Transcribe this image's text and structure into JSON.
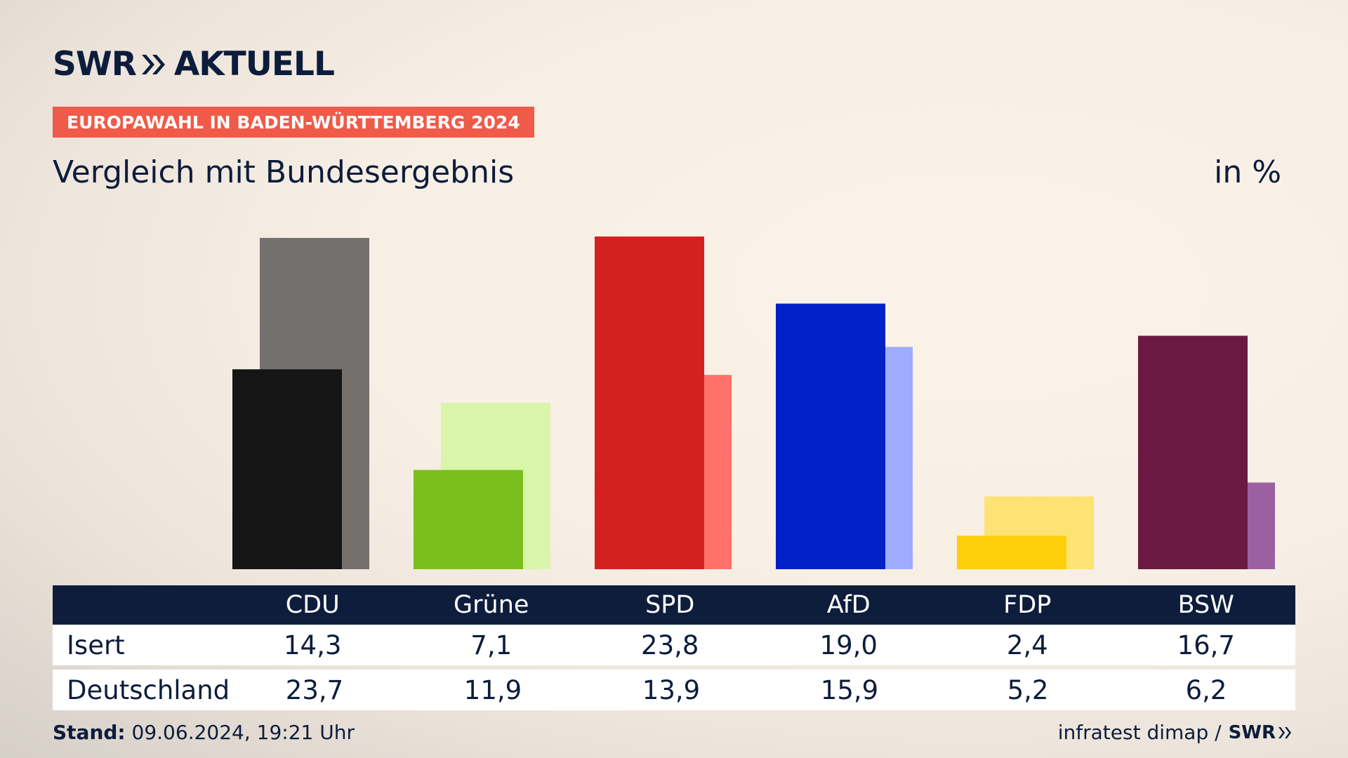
{
  "brand": {
    "name": "SWR",
    "suffix": "AKTUELL"
  },
  "header": {
    "badge": "EUROPAWAHL IN BADEN-WÜRTTEMBERG 2024",
    "subtitle": "Vergleich mit Bundesergebnis",
    "unit": "in %"
  },
  "colors": {
    "badge": "#f05a48",
    "table_header": "#0e1d3c",
    "text": "#0c1c3c"
  },
  "chart_data": {
    "type": "bar",
    "categories": [
      "CDU",
      "Grüne",
      "SPD",
      "AfD",
      "FDP",
      "BSW"
    ],
    "series": [
      {
        "name": "Isert",
        "values": [
          14.3,
          7.1,
          23.8,
          19.0,
          2.4,
          16.7
        ]
      },
      {
        "name": "Deutschland",
        "values": [
          23.7,
          11.9,
          13.9,
          15.9,
          5.2,
          6.2
        ]
      }
    ],
    "colors": {
      "Isert": [
        "#151515",
        "#7abf1c",
        "#d52020",
        "#0021c8",
        "#fdcf0b",
        "#6b1842"
      ],
      "Deutschland": [
        "#73706d",
        "#d8f5aa",
        "#ff716b",
        "#9eabff",
        "#fde274",
        "#9b609f"
      ]
    },
    "ylim": [
      0,
      24
    ]
  },
  "table": {
    "columns": [
      "CDU",
      "Grüne",
      "SPD",
      "AfD",
      "FDP",
      "BSW"
    ],
    "rows": [
      {
        "label": "Isert",
        "values": [
          "14,3",
          "7,1",
          "23,8",
          "19,0",
          "2,4",
          "16,7"
        ]
      },
      {
        "label": "Deutschland",
        "values": [
          "23,7",
          "11,9",
          "13,9",
          "15,9",
          "5,2",
          "6,2"
        ]
      }
    ]
  },
  "footer": {
    "stand_label": "Stand:",
    "stand_value": "09.06.2024, 19:21 Uhr",
    "source": "infratest dimap /",
    "source_logo": "SWR"
  }
}
